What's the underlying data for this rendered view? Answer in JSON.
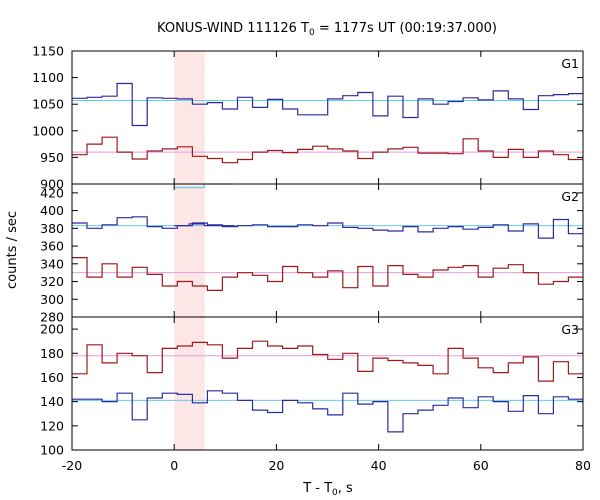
{
  "chart_data": {
    "type": "line",
    "title": "KONUS-WIND 111126 T",
    "title_sub": "0",
    "title_rest": " = 1177s UT (00:19:37.000)",
    "xlabel": "T - T",
    "xlabel_sub": "0",
    "xlabel_rest": ", s",
    "ylabel": "counts / sec",
    "xlim": [
      -20,
      80
    ],
    "x_ticks": [
      "-20",
      "0",
      "20",
      "40",
      "60",
      "80"
    ],
    "highlight_interval": [
      0,
      6
    ],
    "highlight_color": "#fde6e6",
    "bin_width": 2.944,
    "panels": [
      {
        "label": "G1",
        "ylim": [
          900,
          1150
        ],
        "y_ticks": [
          "900",
          "950",
          "1000",
          "1050",
          "1100",
          "1150"
        ],
        "series": [
          {
            "color": "#2b2ba0",
            "mean": 1057,
            "mean_color": "#66ccee",
            "x0": -20,
            "values": [
              1061,
              1063,
              1065,
              1089,
              1010,
              1062,
              1061,
              1060,
              1050,
              1053,
              1041,
              1063,
              1044,
              1059,
              1041,
              1030,
              1030,
              1060,
              1066,
              1072,
              1028,
              1065,
              1025,
              1060,
              1050,
              1055,
              1062,
              1058,
              1075,
              1060,
              1040,
              1066,
              1068,
              1070,
              1063,
              1085,
              1072,
              1076,
              1062,
              1030
            ]
          },
          {
            "color": "#a01818",
            "mean": 960,
            "mean_color": "#e89ae0",
            "x0": -20,
            "values": [
              955,
              975,
              988,
              960,
              947,
              962,
              966,
              970,
              952,
              948,
              940,
              946,
              960,
              963,
              959,
              965,
              971,
              966,
              962,
              948,
              960,
              966,
              969,
              958,
              958,
              957,
              985,
              962,
              950,
              965,
              950,
              962,
              955,
              946,
              958,
              1008,
              963,
              966,
              958,
              963
            ]
          }
        ]
      },
      {
        "label": "G2",
        "ylim": [
          280,
          430
        ],
        "y_ticks": [
          "280",
          "300",
          "320",
          "340",
          "360",
          "380",
          "400",
          "420"
        ],
        "series": [
          {
            "color": "#2b2ba0",
            "mean": 383,
            "mean_color": "#66ccee",
            "x0": -20,
            "values": [
              386,
              380,
              384,
              392,
              393,
              382,
              380,
              383,
              386,
              384,
              382,
              383,
              384,
              382,
              382,
              384,
              383,
              386,
              381,
              380,
              378,
              377,
              382,
              376,
              380,
              382,
              379,
              381,
              384,
              377,
              385,
              369,
              390,
              374,
              382,
              388,
              368,
              382,
              375,
              384
            ]
          },
          {
            "color": "#2b2ba0",
            "mean": null,
            "mean_color": "#66ccee",
            "x0": 0,
            "values": [
              383,
              385,
              383,
              383
            ]
          },
          {
            "color": "#66ccee",
            "mean": null,
            "mean_color": "#66ccee",
            "x0": 0,
            "values": [
              426,
              426,
              430,
              430
            ]
          },
          {
            "color": "#a01818",
            "mean": 330,
            "mean_color": "#e89ae0",
            "x0": -20,
            "values": [
              347,
              325,
              340,
              325,
              336,
              328,
              315,
              320,
              315,
              310,
              325,
              330,
              327,
              320,
              337,
              330,
              325,
              332,
              313,
              337,
              315,
              338,
              328,
              325,
              333,
              336,
              338,
              325,
              335,
              339,
              330,
              317,
              320,
              325,
              343,
              325,
              315,
              321,
              307,
              323
            ]
          }
        ]
      },
      {
        "label": "G3",
        "ylim": [
          100,
          210
        ],
        "y_ticks": [
          "100",
          "120",
          "140",
          "160",
          "180",
          "200"
        ],
        "series": [
          {
            "color": "#a01818",
            "mean": 178,
            "mean_color": "#e89ae0",
            "x0": -20,
            "values": [
              163,
              187,
              172,
              180,
              178,
              164,
              184,
              186,
              189,
              187,
              176,
              184,
              190,
              186,
              184,
              186,
              179,
              175,
              180,
              165,
              176,
              174,
              172,
              170,
              163,
              184,
              176,
              168,
              164,
              172,
              177,
              157,
              173,
              163,
              178,
              181,
              171,
              189,
              174,
              193
            ]
          },
          {
            "color": "#2b2ba0",
            "mean": 141,
            "mean_color": "#66ccee",
            "x0": -20,
            "values": [
              142,
              142,
              140,
              147,
              125,
              143,
              147,
              146,
              139,
              149,
              147,
              141,
              133,
              131,
              141,
              139,
              134,
              129,
              147,
              138,
              140,
              115,
              130,
              133,
              137,
              143,
              135,
              144,
              140,
              132,
              145,
              130,
              144,
              142,
              126,
              129,
              145,
              132,
              144,
              138
            ]
          }
        ]
      }
    ]
  }
}
